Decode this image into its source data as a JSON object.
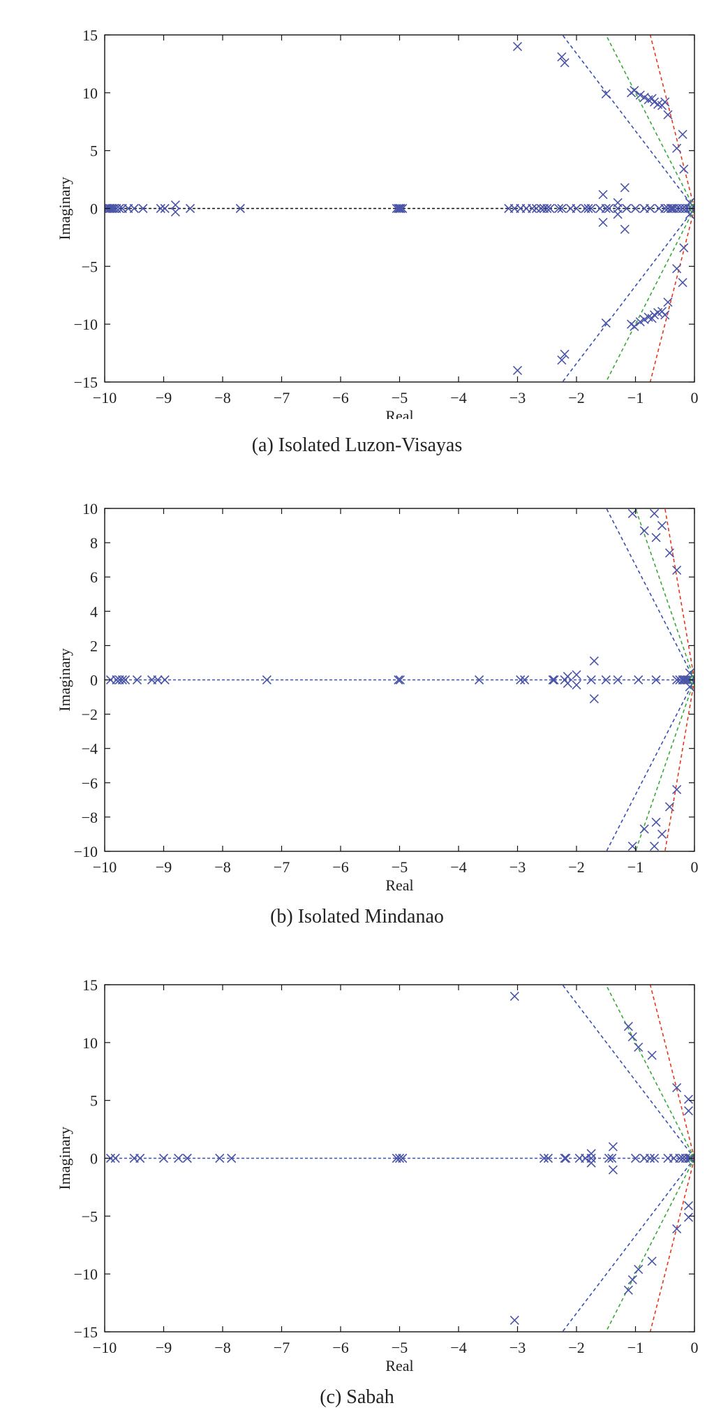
{
  "chart_data": [
    {
      "type": "scatter",
      "caption": "(a) Isolated Luzon-Visayas",
      "xlabel": "Real",
      "ylabel": "Imaginary",
      "xlim": [
        -10,
        0
      ],
      "ylim": [
        -15,
        15
      ],
      "xticks": [
        -10,
        -9,
        -8,
        -7,
        -6,
        -5,
        -4,
        -3,
        -2,
        -1,
        0
      ],
      "yticks": [
        -15,
        -10,
        -5,
        0,
        5,
        10,
        15
      ],
      "grid": false,
      "marker_color": "#4a55a8",
      "damping_lines": [
        {
          "color": "#3a4fb0",
          "slope": 6.7
        },
        {
          "color": "#3aa83a",
          "slope": 10
        },
        {
          "color": "#e03a1f",
          "slope": 20
        }
      ],
      "zero_line_color": "#111111",
      "points": [
        [
          -9.98,
          0
        ],
        [
          -9.95,
          0
        ],
        [
          -9.92,
          0
        ],
        [
          -9.9,
          0
        ],
        [
          -9.87,
          0
        ],
        [
          -9.84,
          0
        ],
        [
          -9.8,
          0
        ],
        [
          -9.75,
          0
        ],
        [
          -9.7,
          0
        ],
        [
          -9.6,
          0
        ],
        [
          -9.5,
          0
        ],
        [
          -9.35,
          0
        ],
        [
          -9.05,
          0
        ],
        [
          -8.98,
          0
        ],
        [
          -8.8,
          0.3
        ],
        [
          -8.8,
          -0.3
        ],
        [
          -8.55,
          0
        ],
        [
          -7.7,
          0
        ],
        [
          -5.05,
          0
        ],
        [
          -5.02,
          0
        ],
        [
          -5.0,
          0
        ],
        [
          -4.98,
          0
        ],
        [
          -4.95,
          0
        ],
        [
          -3.15,
          0
        ],
        [
          -3.05,
          0
        ],
        [
          -2.95,
          0
        ],
        [
          -2.85,
          0
        ],
        [
          -2.75,
          0
        ],
        [
          -2.68,
          0
        ],
        [
          -2.6,
          0
        ],
        [
          -2.55,
          0
        ],
        [
          -2.5,
          0
        ],
        [
          -2.45,
          0
        ],
        [
          -2.3,
          0
        ],
        [
          -2.25,
          0
        ],
        [
          -2.1,
          0
        ],
        [
          -2.0,
          0
        ],
        [
          -1.85,
          0
        ],
        [
          -1.8,
          0
        ],
        [
          -1.75,
          0
        ],
        [
          -1.6,
          0
        ],
        [
          -1.5,
          0
        ],
        [
          -1.45,
          0
        ],
        [
          -1.3,
          0
        ],
        [
          -1.15,
          0
        ],
        [
          -1.0,
          0
        ],
        [
          -0.85,
          0
        ],
        [
          -0.75,
          0
        ],
        [
          -0.6,
          0
        ],
        [
          -0.5,
          0
        ],
        [
          -0.45,
          0
        ],
        [
          -0.4,
          0
        ],
        [
          -0.38,
          0
        ],
        [
          -0.35,
          0
        ],
        [
          -0.3,
          0
        ],
        [
          -0.25,
          0
        ],
        [
          -0.2,
          0
        ],
        [
          -0.15,
          0
        ],
        [
          -0.1,
          0
        ],
        [
          -0.05,
          0
        ],
        [
          -1.55,
          1.2
        ],
        [
          -1.55,
          -1.2
        ],
        [
          -1.3,
          0.5
        ],
        [
          -1.3,
          -0.5
        ],
        [
          -1.18,
          1.8
        ],
        [
          -1.18,
          -1.8
        ],
        [
          -3.0,
          14.0
        ],
        [
          -3.0,
          -14.0
        ],
        [
          -2.25,
          13.1
        ],
        [
          -2.25,
          -13.1
        ],
        [
          -2.2,
          12.6
        ],
        [
          -2.2,
          -12.6
        ],
        [
          -1.5,
          9.9
        ],
        [
          -1.5,
          -9.9
        ],
        [
          -1.07,
          10.0
        ],
        [
          -1.07,
          -10.0
        ],
        [
          -1.02,
          10.2
        ],
        [
          -1.02,
          -10.2
        ],
        [
          -0.92,
          9.8
        ],
        [
          -0.92,
          -9.8
        ],
        [
          -0.85,
          9.6
        ],
        [
          -0.85,
          -9.6
        ],
        [
          -0.78,
          9.4
        ],
        [
          -0.78,
          -9.4
        ],
        [
          -0.72,
          9.5
        ],
        [
          -0.72,
          -9.5
        ],
        [
          -0.68,
          9.2
        ],
        [
          -0.68,
          -9.2
        ],
        [
          -0.62,
          9.0
        ],
        [
          -0.62,
          -9.0
        ],
        [
          -0.55,
          8.9
        ],
        [
          -0.55,
          -8.9
        ],
        [
          -0.5,
          9.2
        ],
        [
          -0.5,
          -9.2
        ],
        [
          -0.45,
          8.1
        ],
        [
          -0.45,
          -8.1
        ],
        [
          -0.3,
          5.2
        ],
        [
          -0.3,
          -5.2
        ],
        [
          -0.2,
          6.4
        ],
        [
          -0.2,
          -6.4
        ],
        [
          -0.18,
          3.4
        ],
        [
          -0.18,
          -3.4
        ],
        [
          -0.08,
          0.5
        ],
        [
          -0.08,
          -0.5
        ]
      ]
    },
    {
      "type": "scatter",
      "caption": "(b) Isolated Mindanao",
      "xlabel": "Real",
      "ylabel": "Imaginary",
      "xlim": [
        -10,
        0
      ],
      "ylim": [
        -10,
        10
      ],
      "xticks": [
        -10,
        -9,
        -8,
        -7,
        -6,
        -5,
        -4,
        -3,
        -2,
        -1,
        0
      ],
      "yticks": [
        -10,
        -8,
        -6,
        -4,
        -2,
        0,
        2,
        4,
        6,
        8,
        10
      ],
      "grid": false,
      "marker_color": "#4a55a8",
      "damping_lines": [
        {
          "color": "#3a4fb0",
          "slope": 6.7
        },
        {
          "color": "#3aa83a",
          "slope": 10
        },
        {
          "color": "#e03a1f",
          "slope": 20
        }
      ],
      "zero_line_color": "#3a4fb0",
      "points": [
        [
          -9.9,
          0
        ],
        [
          -9.8,
          0
        ],
        [
          -9.75,
          0
        ],
        [
          -9.7,
          0
        ],
        [
          -9.65,
          0
        ],
        [
          -9.45,
          0
        ],
        [
          -9.2,
          0
        ],
        [
          -9.1,
          0
        ],
        [
          -8.98,
          0
        ],
        [
          -7.25,
          0
        ],
        [
          -5.02,
          0
        ],
        [
          -4.99,
          0
        ],
        [
          -3.65,
          0
        ],
        [
          -2.95,
          0
        ],
        [
          -2.88,
          0
        ],
        [
          -2.4,
          0
        ],
        [
          -2.38,
          0
        ],
        [
          -2.2,
          0
        ],
        [
          -2.15,
          0.2
        ],
        [
          -2.15,
          -0.2
        ],
        [
          -2.0,
          0.3
        ],
        [
          -2.0,
          -0.3
        ],
        [
          -1.75,
          0
        ],
        [
          -1.7,
          1.1
        ],
        [
          -1.7,
          -1.1
        ],
        [
          -1.5,
          0
        ],
        [
          -1.3,
          0
        ],
        [
          -0.95,
          0
        ],
        [
          -0.65,
          0
        ],
        [
          -0.3,
          0
        ],
        [
          -0.25,
          0
        ],
        [
          -0.2,
          0
        ],
        [
          -0.18,
          0
        ],
        [
          -0.15,
          0
        ],
        [
          -0.12,
          0
        ],
        [
          -0.1,
          0
        ],
        [
          -0.08,
          0.4
        ],
        [
          -0.08,
          -0.4
        ],
        [
          -0.05,
          0
        ],
        [
          -1.05,
          9.7
        ],
        [
          -1.05,
          -9.7
        ],
        [
          -0.85,
          8.7
        ],
        [
          -0.85,
          -8.7
        ],
        [
          -0.68,
          9.7
        ],
        [
          -0.68,
          -9.7
        ],
        [
          -0.65,
          8.3
        ],
        [
          -0.65,
          -8.3
        ],
        [
          -0.55,
          9.0
        ],
        [
          -0.55,
          -9.0
        ],
        [
          -0.42,
          7.4
        ],
        [
          -0.42,
          -7.4
        ],
        [
          -0.3,
          6.4
        ],
        [
          -0.3,
          -6.4
        ]
      ]
    },
    {
      "type": "scatter",
      "caption": "(c) Sabah",
      "xlabel": "Real",
      "ylabel": "Imaginary",
      "xlim": [
        -10,
        0
      ],
      "ylim": [
        -15,
        15
      ],
      "xticks": [
        -10,
        -9,
        -8,
        -7,
        -6,
        -5,
        -4,
        -3,
        -2,
        -1,
        0
      ],
      "yticks": [
        -15,
        -10,
        -5,
        0,
        5,
        10,
        15
      ],
      "grid": false,
      "marker_color": "#4a55a8",
      "damping_lines": [
        {
          "color": "#3a4fb0",
          "slope": 6.7
        },
        {
          "color": "#3aa83a",
          "slope": 10
        },
        {
          "color": "#e03a1f",
          "slope": 20
        }
      ],
      "zero_line_color": "#3a4fb0",
      "points": [
        [
          -9.9,
          0
        ],
        [
          -9.82,
          0
        ],
        [
          -9.5,
          0
        ],
        [
          -9.4,
          0
        ],
        [
          -9.0,
          0
        ],
        [
          -8.75,
          0
        ],
        [
          -8.6,
          0
        ],
        [
          -8.05,
          0
        ],
        [
          -7.85,
          0
        ],
        [
          -5.05,
          0
        ],
        [
          -5.0,
          0
        ],
        [
          -4.95,
          0
        ],
        [
          -2.55,
          0
        ],
        [
          -2.48,
          0
        ],
        [
          -2.2,
          0
        ],
        [
          -2.18,
          0
        ],
        [
          -1.95,
          0
        ],
        [
          -1.85,
          0
        ],
        [
          -1.75,
          0.4
        ],
        [
          -1.75,
          -0.4
        ],
        [
          -1.75,
          0
        ],
        [
          -1.45,
          0
        ],
        [
          -1.4,
          0
        ],
        [
          -1.38,
          1.0
        ],
        [
          -1.38,
          -1.0
        ],
        [
          -1.0,
          0
        ],
        [
          -0.85,
          0
        ],
        [
          -0.75,
          0
        ],
        [
          -0.68,
          0
        ],
        [
          -0.45,
          0
        ],
        [
          -0.35,
          0
        ],
        [
          -0.25,
          0
        ],
        [
          -0.2,
          0
        ],
        [
          -0.15,
          0
        ],
        [
          -0.1,
          0
        ],
        [
          -0.08,
          0
        ],
        [
          -0.06,
          0
        ],
        [
          -3.05,
          14.0
        ],
        [
          -3.05,
          -14.0
        ],
        [
          -1.12,
          11.4
        ],
        [
          -1.12,
          -11.4
        ],
        [
          -1.05,
          10.5
        ],
        [
          -1.05,
          -10.5
        ],
        [
          -0.95,
          9.6
        ],
        [
          -0.95,
          -9.6
        ],
        [
          -0.72,
          8.9
        ],
        [
          -0.72,
          -8.9
        ],
        [
          -0.3,
          6.1
        ],
        [
          -0.3,
          -6.1
        ],
        [
          -0.1,
          5.1
        ],
        [
          -0.1,
          -5.1
        ],
        [
          -0.1,
          4.1
        ],
        [
          -0.1,
          -4.1
        ]
      ]
    }
  ]
}
